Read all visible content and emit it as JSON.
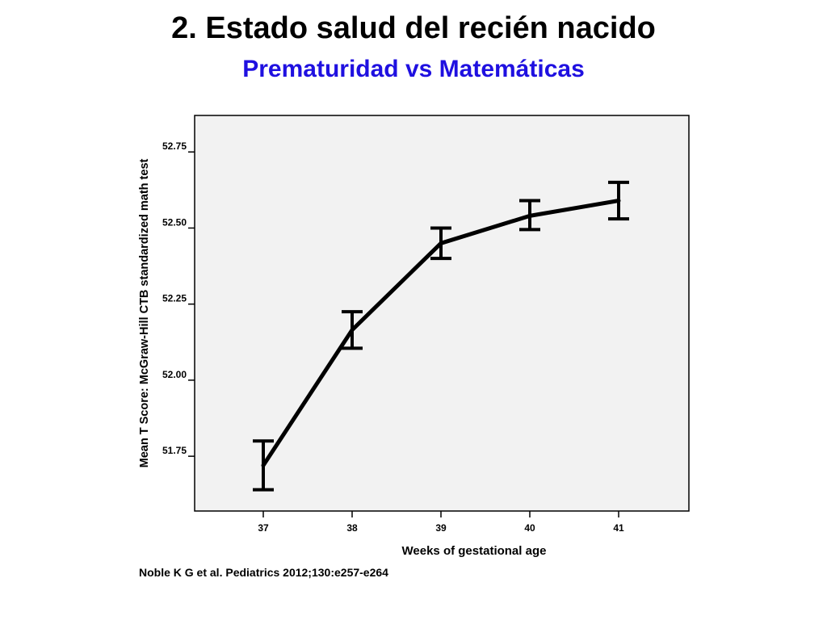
{
  "slide": {
    "title": "2. Estado salud del recién nacido",
    "subtitle": "Prematuridad vs Matemáticas",
    "citation": "Noble K G et al. Pediatrics 2012;130:e257-e264"
  },
  "colors": {
    "subtitle": "#1f10e0",
    "line": "#000000",
    "plot_background": "#f2f2f2",
    "plot_border": "#000000"
  },
  "chart_data": {
    "type": "line",
    "title": "",
    "xlabel": "Weeks of gestational age",
    "ylabel": "Mean T Score: McGraw-Hill CTB standardized math test",
    "categories": [
      "37",
      "38",
      "39",
      "40",
      "41"
    ],
    "y_ticks": [
      "51.75",
      "52.00",
      "52.25",
      "52.50",
      "52.75"
    ],
    "ylim": [
      51.57,
      52.87
    ],
    "grid": false,
    "error_bars": true,
    "series": [
      {
        "values": [
          51.72,
          52.165,
          52.45,
          52.54,
          52.59
        ],
        "lower": [
          51.64,
          52.105,
          52.4,
          52.495,
          52.53
        ],
        "upper": [
          51.8,
          52.225,
          52.5,
          52.59,
          52.65
        ]
      }
    ]
  }
}
